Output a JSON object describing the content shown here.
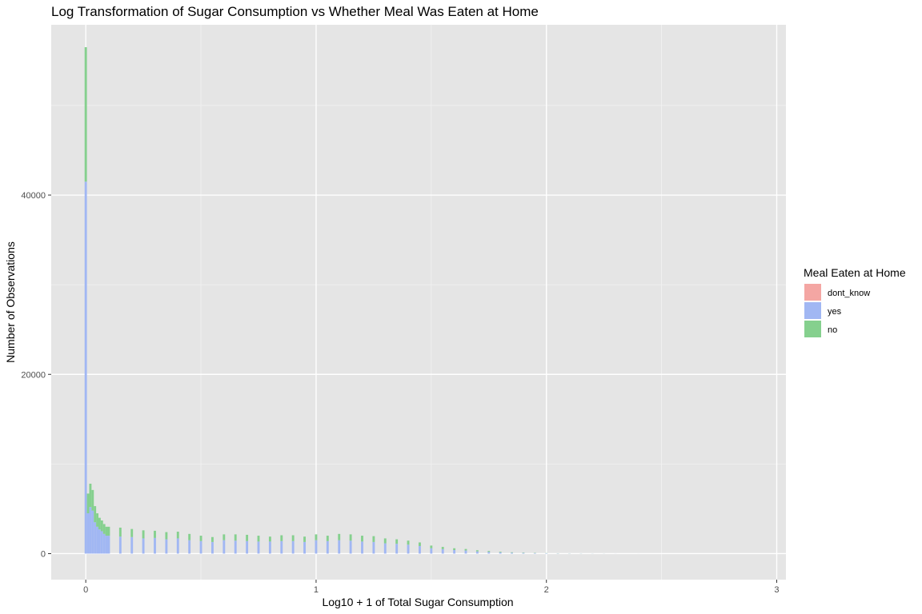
{
  "chart_data": {
    "type": "bar",
    "subtype": "stacked-histogram",
    "title": "Log Transformation of Sugar Consumption vs Whether Meal Was Eaten at Home",
    "xlabel": "Log10 + 1 of Total Sugar Consumption",
    "ylabel": "Number of Observations",
    "xlim": [
      -0.15,
      3.04
    ],
    "ylim": [
      -2900,
      59000
    ],
    "x_ticks": [
      0,
      1,
      2,
      3
    ],
    "x_tick_labels": [
      "0",
      "1",
      "2",
      "3"
    ],
    "y_ticks": [
      0,
      20000,
      40000
    ],
    "y_tick_labels": [
      "0",
      "20000",
      "40000"
    ],
    "grid": true,
    "legend_position": "right",
    "legend_title": "Meal Eaten at Home",
    "colors": {
      "panel_background": "#e5e5e5",
      "grid_major": "#ffffff",
      "grid_minor": "#f2f2f2",
      "dont_know": "#f4a6a3",
      "no": "#85d08e",
      "yes": "#a1b7f3"
    },
    "bin_width": 0.01,
    "series": [
      {
        "name": "dont_know",
        "x": [
          0.0
        ],
        "values": [
          0
        ]
      },
      {
        "name": "yes",
        "x": [
          0.0,
          0.01,
          0.02,
          0.03,
          0.04,
          0.05,
          0.06,
          0.07,
          0.08,
          0.09,
          0.1,
          0.15,
          0.2,
          0.25,
          0.3,
          0.35,
          0.4,
          0.45,
          0.5,
          0.55,
          0.6,
          0.65,
          0.7,
          0.75,
          0.8,
          0.85,
          0.9,
          0.95,
          1.0,
          1.05,
          1.1,
          1.15,
          1.2,
          1.25,
          1.3,
          1.35,
          1.4,
          1.45,
          1.5,
          1.55,
          1.6,
          1.65,
          1.7,
          1.75,
          1.8,
          1.85,
          1.9,
          1.95,
          2.0,
          2.05,
          2.1,
          2.15,
          2.2,
          2.25,
          2.3,
          2.4,
          2.5
        ],
        "values": [
          41500,
          4500,
          5200,
          4800,
          3500,
          3000,
          2700,
          2500,
          2200,
          2000,
          2000,
          1900,
          1850,
          1700,
          1750,
          1600,
          1700,
          1500,
          1400,
          1300,
          1500,
          1450,
          1400,
          1350,
          1350,
          1400,
          1400,
          1300,
          1500,
          1400,
          1500,
          1450,
          1350,
          1300,
          1150,
          1100,
          1000,
          850,
          600,
          500,
          400,
          350,
          250,
          200,
          150,
          100,
          80,
          60,
          40,
          30,
          20,
          15,
          10,
          8,
          5,
          3,
          1
        ]
      },
      {
        "name": "no",
        "x": [
          0.0,
          0.01,
          0.02,
          0.03,
          0.04,
          0.05,
          0.06,
          0.07,
          0.08,
          0.09,
          0.1,
          0.15,
          0.2,
          0.25,
          0.3,
          0.35,
          0.4,
          0.45,
          0.5,
          0.55,
          0.6,
          0.65,
          0.7,
          0.75,
          0.8,
          0.85,
          0.9,
          0.95,
          1.0,
          1.05,
          1.1,
          1.15,
          1.2,
          1.25,
          1.3,
          1.35,
          1.4,
          1.45,
          1.5,
          1.55,
          1.6,
          1.65,
          1.7,
          1.75,
          1.8,
          1.85,
          1.9,
          1.95,
          2.0,
          2.05,
          2.1,
          2.15,
          2.2,
          2.25,
          2.3,
          2.4,
          2.5
        ],
        "values": [
          15000,
          2200,
          2600,
          2300,
          1800,
          1500,
          1300,
          1200,
          1100,
          1000,
          1000,
          1000,
          900,
          900,
          800,
          800,
          750,
          700,
          600,
          550,
          650,
          700,
          700,
          650,
          550,
          650,
          650,
          600,
          650,
          600,
          700,
          700,
          650,
          650,
          550,
          500,
          450,
          400,
          300,
          250,
          200,
          170,
          130,
          100,
          70,
          50,
          40,
          30,
          20,
          15,
          10,
          8,
          5,
          4,
          2,
          1,
          0
        ]
      }
    ]
  }
}
